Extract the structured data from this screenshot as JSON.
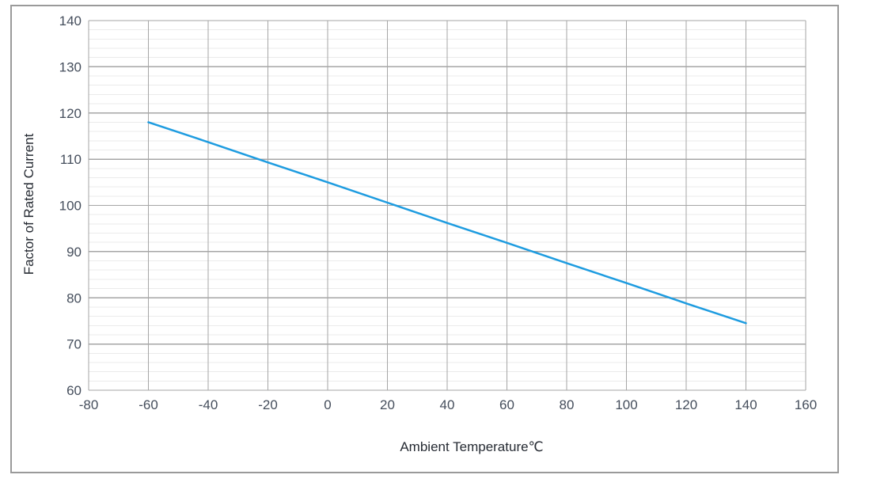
{
  "figure": {
    "background": "#ffffff",
    "border_color": "#9a9a9a"
  },
  "chart_data": {
    "type": "line",
    "title": "",
    "xlabel": "Ambient Temperature℃",
    "ylabel": "Factor of Rated Current",
    "xlim": [
      -80,
      160
    ],
    "ylim": [
      60,
      140
    ],
    "x_ticks": [
      -80,
      -60,
      -40,
      -20,
      0,
      20,
      40,
      60,
      80,
      100,
      120,
      140,
      160
    ],
    "y_ticks": [
      60,
      70,
      80,
      90,
      100,
      110,
      120,
      130,
      140
    ],
    "y_minor_step": 2,
    "grid": {
      "major_color": "#a6a6a6",
      "minor_color": "#ebebeb",
      "show_minor_horizontal": true,
      "show_minor_vertical": false
    },
    "legend_position": "none",
    "axis_title_color": "#262b33",
    "tick_label_color": "#454e5c",
    "series": [
      {
        "name": "Factor of Rated Current",
        "color": "#1e9ce0",
        "line_width": 2.5,
        "x": [
          -60,
          -40,
          -20,
          0,
          20,
          40,
          60,
          80,
          100,
          120,
          140
        ],
        "y": [
          118,
          113.7,
          109.3,
          105,
          100.6,
          96.2,
          91.9,
          87.5,
          83.2,
          78.8,
          74.5
        ]
      }
    ]
  }
}
